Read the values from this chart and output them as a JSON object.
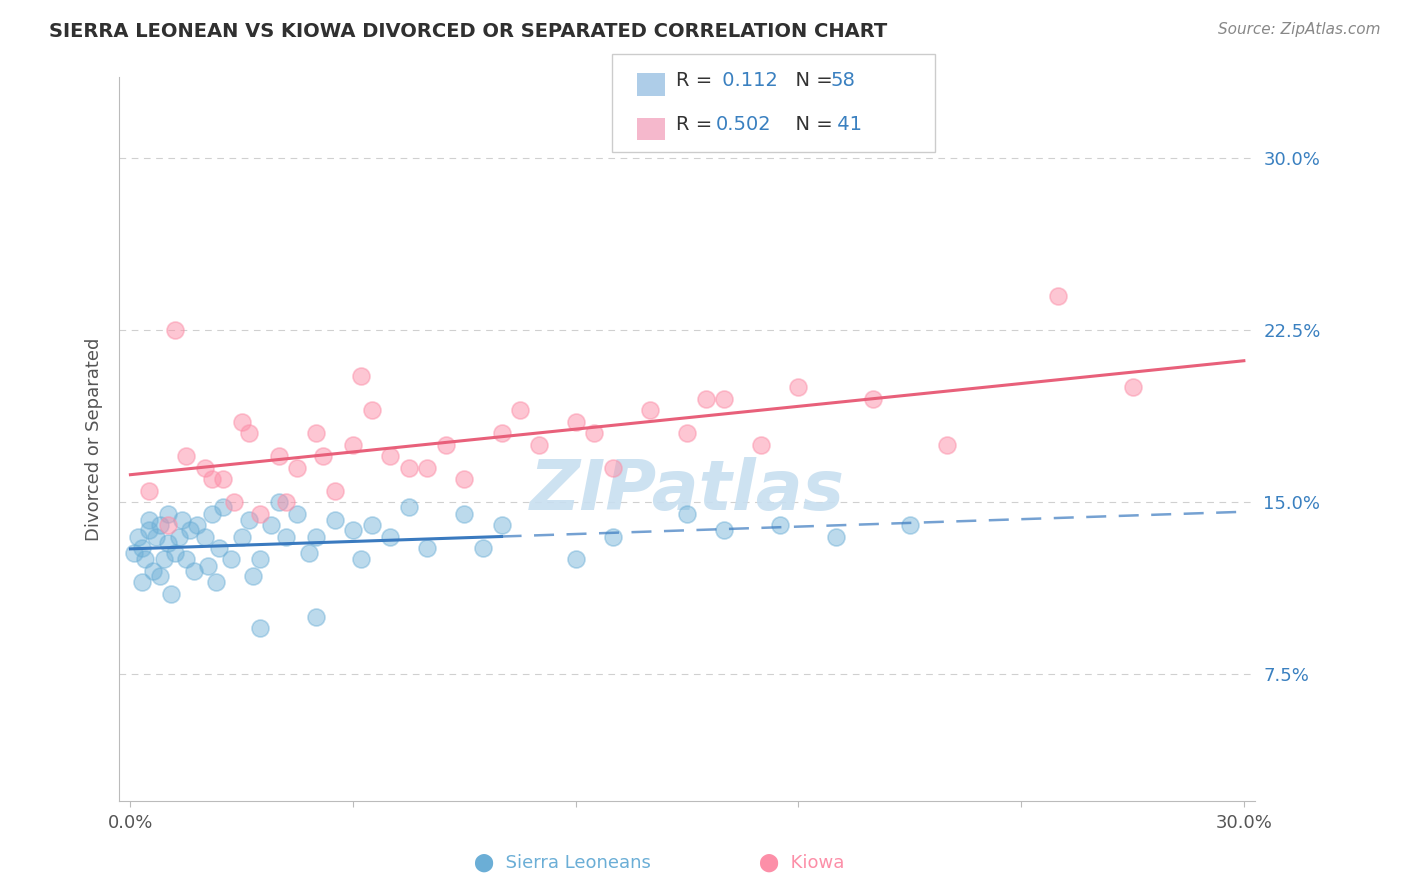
{
  "title": "SIERRA LEONEAN VS KIOWA DIVORCED OR SEPARATED CORRELATION CHART",
  "source": "Source: ZipAtlas.com",
  "ylabel": "Divorced or Separated",
  "r_sierra": 0.112,
  "n_sierra": 58,
  "r_kiowa": 0.502,
  "n_kiowa": 41,
  "color_sierra": "#6baed6",
  "color_kiowa": "#fc8fa8",
  "line_color_sierra": "#3a7abf",
  "line_color_kiowa": "#e8607a",
  "xlim_min": 0.0,
  "xlim_max": 30.0,
  "ylim_min": 4.0,
  "ylim_max": 33.0,
  "ytick_values": [
    7.5,
    15.0,
    22.5,
    30.0
  ],
  "ytick_labels": [
    "7.5%",
    "15.0%",
    "22.5%",
    "30.0%"
  ],
  "background_color": "#ffffff",
  "grid_color": "#d0d0d0",
  "watermark_text": "ZIPatlas",
  "watermark_color": "#c8dff0",
  "title_color": "#303030",
  "source_color": "#888888",
  "legend_r_color": "#3a80c0",
  "legend_n_color": "#3a80c0",
  "legend_text_color": "#333333",
  "bottom_label_sierra_color": "#6baed6",
  "bottom_label_kiowa_color": "#fc8fa8",
  "sierra_x": [
    0.1,
    0.2,
    0.3,
    0.3,
    0.4,
    0.5,
    0.5,
    0.6,
    0.7,
    0.8,
    0.8,
    0.9,
    1.0,
    1.0,
    1.1,
    1.2,
    1.3,
    1.4,
    1.5,
    1.6,
    1.7,
    1.8,
    2.0,
    2.1,
    2.2,
    2.3,
    2.4,
    2.5,
    2.7,
    3.0,
    3.2,
    3.3,
    3.5,
    3.8,
    4.0,
    4.2,
    4.5,
    4.8,
    5.0,
    5.5,
    6.0,
    6.2,
    6.5,
    7.0,
    7.5,
    8.0,
    9.0,
    9.5,
    10.0,
    12.0,
    13.0,
    15.0,
    16.0,
    17.5,
    19.0,
    21.0,
    3.5,
    5.0
  ],
  "sierra_y": [
    12.8,
    13.5,
    11.5,
    13.0,
    12.5,
    14.2,
    13.8,
    12.0,
    13.5,
    11.8,
    14.0,
    12.5,
    13.2,
    14.5,
    11.0,
    12.8,
    13.5,
    14.2,
    12.5,
    13.8,
    12.0,
    14.0,
    13.5,
    12.2,
    14.5,
    11.5,
    13.0,
    14.8,
    12.5,
    13.5,
    14.2,
    11.8,
    12.5,
    14.0,
    15.0,
    13.5,
    14.5,
    12.8,
    13.5,
    14.2,
    13.8,
    12.5,
    14.0,
    13.5,
    14.8,
    13.0,
    14.5,
    13.0,
    14.0,
    12.5,
    13.5,
    14.5,
    13.8,
    14.0,
    13.5,
    14.0,
    9.5,
    10.0
  ],
  "kiowa_x": [
    0.5,
    1.0,
    1.5,
    2.0,
    2.5,
    2.8,
    3.0,
    3.5,
    4.0,
    4.5,
    5.0,
    5.5,
    6.0,
    6.5,
    7.0,
    7.5,
    8.5,
    9.0,
    10.0,
    11.0,
    12.0,
    13.0,
    14.0,
    15.0,
    16.0,
    17.0,
    18.0,
    20.0,
    22.0,
    25.0,
    27.0,
    1.2,
    2.2,
    3.2,
    4.2,
    5.2,
    6.2,
    8.0,
    10.5,
    12.5,
    15.5
  ],
  "kiowa_y": [
    15.5,
    14.0,
    17.0,
    16.5,
    16.0,
    15.0,
    18.5,
    14.5,
    17.0,
    16.5,
    18.0,
    15.5,
    17.5,
    19.0,
    17.0,
    16.5,
    17.5,
    16.0,
    18.0,
    17.5,
    18.5,
    16.5,
    19.0,
    18.0,
    19.5,
    17.5,
    20.0,
    19.5,
    17.5,
    24.0,
    20.0,
    22.5,
    16.0,
    18.0,
    15.0,
    17.0,
    20.5,
    16.5,
    19.0,
    18.0,
    19.5
  ]
}
